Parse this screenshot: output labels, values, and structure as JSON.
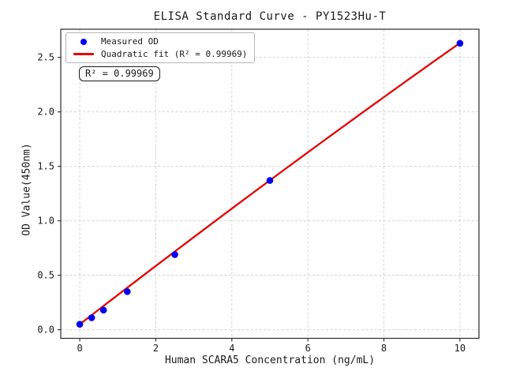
{
  "figure": {
    "background": "#ffffff"
  },
  "colors": {
    "grid": "#cdcdcd",
    "spine": "#2a2a2a",
    "tick_label": "#1a1a1a",
    "measured_points": "#0000f0",
    "fit_line": "#e60000"
  },
  "chart_data": {
    "type": "scatter",
    "title": "ELISA Standard Curve - PY1523Hu-T",
    "xlabel": "Human SCARA5 Concentration (ng/mL)",
    "ylabel": "OD Value(450nm)",
    "xlim": [
      -0.5,
      10.5
    ],
    "ylim": [
      -0.079,
      2.759
    ],
    "x_ticks": [
      0,
      2,
      4,
      6,
      8,
      10
    ],
    "x_tick_labels": [
      "0",
      "2",
      "4",
      "6",
      "8",
      "10"
    ],
    "y_ticks": [
      0.0,
      0.5,
      1.0,
      1.5,
      2.0,
      2.5
    ],
    "y_tick_labels": [
      "0.0",
      "0.5",
      "1.0",
      "1.5",
      "2.0",
      "2.5"
    ],
    "grid": true,
    "grid_style": "dashed",
    "legend_position": "upper left",
    "series": [
      {
        "name": "Measured OD",
        "type": "scatter",
        "color": "#0000f0",
        "x": [
          0,
          0.313,
          0.625,
          1.25,
          2.5,
          5,
          10
        ],
        "y": [
          0.05,
          0.11,
          0.18,
          0.35,
          0.69,
          1.37,
          2.63
        ]
      },
      {
        "name": "Quadratic fit (R² = 0.99969)",
        "type": "line",
        "color": "#e60000",
        "fit": {
          "kind": "quadratic",
          "a": -0.0012,
          "b": 0.2703,
          "c": 0.05,
          "x_range": [
            0,
            10
          ]
        },
        "r_squared": 0.99969
      }
    ],
    "annotation": "R² = 0.99969"
  }
}
